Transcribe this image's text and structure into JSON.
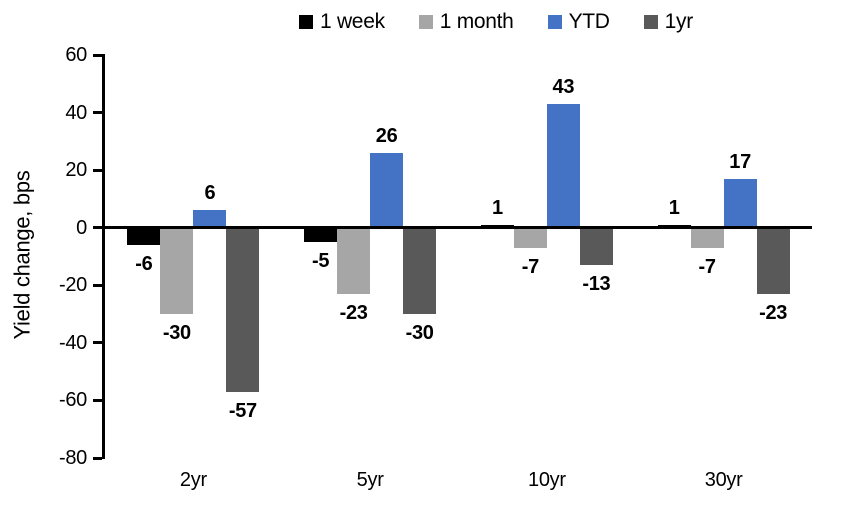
{
  "chart_data": {
    "type": "bar",
    "title": "",
    "ylabel": "Yield change, bps",
    "xlabel": "",
    "categories": [
      "2yr",
      "5yr",
      "10yr",
      "30yr"
    ],
    "series": [
      {
        "name": "1 week",
        "color": "#000000",
        "values": [
          -6,
          -5,
          1,
          1
        ]
      },
      {
        "name": "1 month",
        "color": "#a6a6a6",
        "values": [
          -30,
          -23,
          -7,
          -7
        ]
      },
      {
        "name": "YTD",
        "color": "#4472c4",
        "values": [
          6,
          26,
          43,
          17
        ]
      },
      {
        "name": "1yr",
        "color": "#595959",
        "values": [
          -57,
          -30,
          -13,
          -23
        ]
      }
    ],
    "ylim": [
      -80,
      60
    ],
    "yticks": [
      60,
      40,
      20,
      0,
      -20,
      -40,
      -60,
      -80
    ],
    "grid": false,
    "legend_position": "top-center",
    "data_labels": true,
    "axis_color": "#000000",
    "background": "#ffffff"
  }
}
